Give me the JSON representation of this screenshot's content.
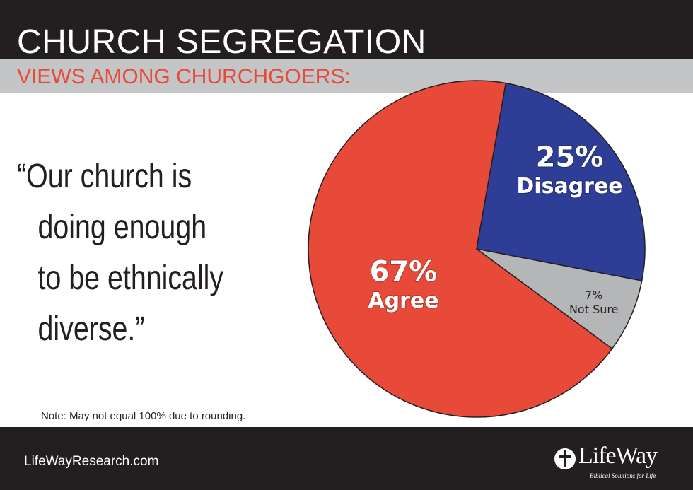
{
  "header": {
    "title": "CHURCH SEGREGATION",
    "subtitle": "VIEWS AMONG CHURCHGOERS:"
  },
  "quote": {
    "lines": [
      "“Our church is",
      "doing enough",
      "to be ethnically",
      "diverse.”"
    ]
  },
  "note": "Note: May not equal 100% due to rounding.",
  "footer": {
    "website": "LifeWayResearch.com",
    "logo_text": "LifeWay",
    "logo_tagline": "Biblical Solutions for Life"
  },
  "chart_data": {
    "type": "pie",
    "slices": [
      {
        "name": "Agree",
        "value": 67,
        "label_value": "67%",
        "label_name": "Agree",
        "color": "#e84a3a"
      },
      {
        "name": "Disagree",
        "value": 25,
        "label_value": "25%",
        "label_name": "Disagree",
        "color": "#2e3e97"
      },
      {
        "name": "Not Sure",
        "value": 7,
        "label_value": "7%",
        "label_name": "Not Sure",
        "color": "#b5b6b8"
      }
    ]
  },
  "colors": {
    "dark": "#231f20",
    "band": "#c4c5c7",
    "accent": "#e84a3a"
  }
}
